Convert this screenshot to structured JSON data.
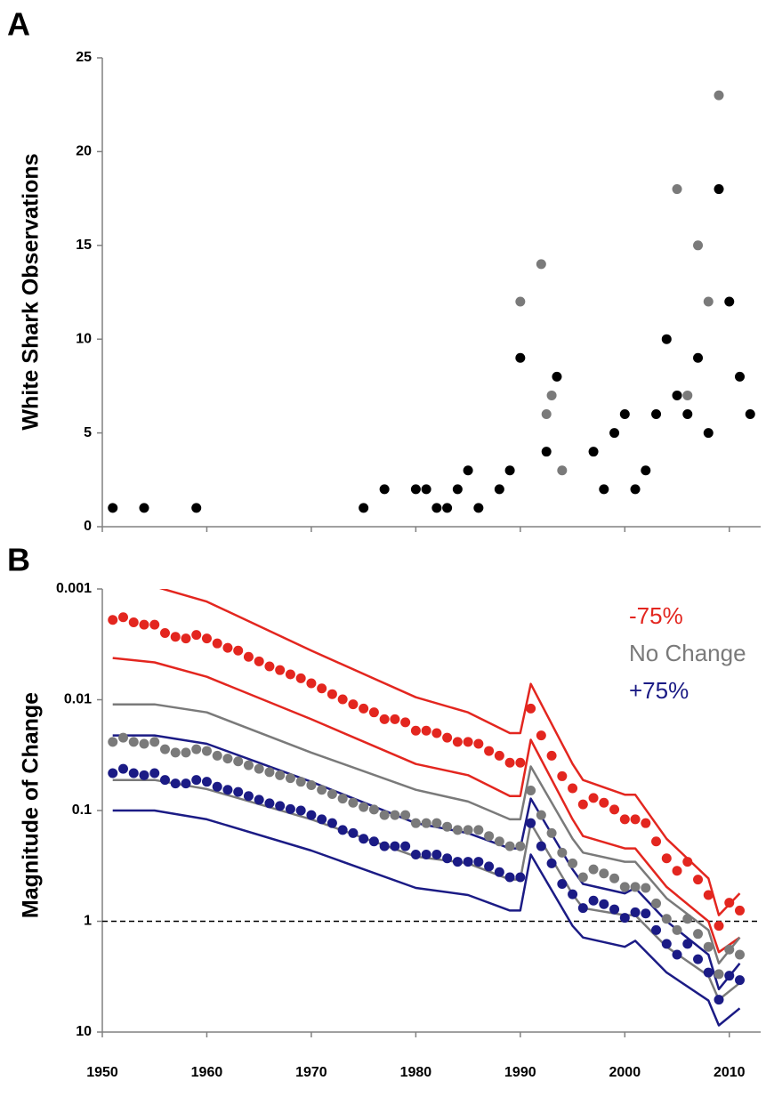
{
  "chart_data": [
    {
      "type": "scatter",
      "panel": "A",
      "ylabel": "White Shark Observations",
      "xlim": [
        1950,
        2013
      ],
      "xticks": [
        1950,
        1960,
        1970,
        1980,
        1990,
        2000,
        2010
      ],
      "ylim": [
        0,
        25
      ],
      "yticks": [
        0,
        5,
        10,
        15,
        20,
        25
      ],
      "series": [
        {
          "color": "#000000",
          "x": [
            1951,
            1954,
            1959,
            1975,
            1977,
            1980,
            1981,
            1982,
            1983,
            1984,
            1985,
            1986,
            1988,
            1989,
            1990,
            1992.5,
            1993.5,
            1997,
            1998,
            1999,
            2000,
            2001,
            2002,
            2003,
            2004,
            2005,
            2006,
            2007,
            2008,
            2009,
            2010,
            2011,
            2012
          ],
          "values": [
            1,
            1,
            1,
            1,
            2,
            2,
            2,
            1,
            1,
            2,
            3,
            1,
            2,
            3,
            9,
            4,
            8,
            4,
            2,
            5,
            6,
            2,
            3,
            6,
            10,
            7,
            6,
            9,
            5,
            18,
            12,
            8,
            6
          ]
        },
        {
          "color": "#7a7a7a",
          "x": [
            1990,
            1992,
            1993,
            1992.5,
            1994,
            2005,
            2006,
            2007,
            2008,
            2009
          ],
          "values": [
            12,
            14,
            7,
            6,
            3,
            18,
            7,
            15,
            12,
            23
          ]
        }
      ]
    },
    {
      "type": "line",
      "panel": "B",
      "ylabel": "Magnitude of Change",
      "xlim": [
        1950,
        2013
      ],
      "xticks": [
        1950,
        1960,
        1970,
        1980,
        1990,
        2000,
        2010
      ],
      "ylim": [
        0.001,
        10
      ],
      "yticks": [
        0.001,
        0.01,
        0.1,
        1,
        10
      ],
      "log_scale": true,
      "y_inverted": true,
      "reference_line": 1,
      "legend": "top-right",
      "x": [
        1951,
        1952,
        1953,
        1954,
        1955,
        1956,
        1957,
        1958,
        1959,
        1960,
        1961,
        1962,
        1963,
        1964,
        1965,
        1966,
        1967,
        1968,
        1969,
        1970,
        1971,
        1972,
        1973,
        1974,
        1975,
        1976,
        1977,
        1978,
        1979,
        1980,
        1981,
        1982,
        1983,
        1984,
        1985,
        1986,
        1987,
        1988,
        1989,
        1990,
        1991,
        1992,
        1993,
        1994,
        1995,
        1996,
        1997,
        1998,
        1999,
        2000,
        2001,
        2002,
        2003,
        2004,
        2005,
        2006,
        2007,
        2008,
        2009,
        2010,
        2011
      ],
      "series": [
        {
          "style": "line",
          "color": "#e3261f",
          "x": [
            1951,
            1955,
            1960,
            1970,
            1980,
            1985,
            1989,
            1990,
            1991,
            1995,
            1996,
            2000,
            2001,
            2004,
            2008,
            2009,
            2011
          ],
          "values": [
            0.00086,
            0.00095,
            0.0013,
            0.0036,
            0.0095,
            0.013,
            0.02,
            0.02,
            0.0072,
            0.038,
            0.053,
            0.072,
            0.072,
            0.18,
            0.41,
            0.88,
            0.56
          ]
        },
        {
          "style": "line",
          "color": "#e3261f",
          "x": [
            1951,
            1955,
            1960,
            1970,
            1980,
            1985,
            1989,
            1990,
            1991,
            1995,
            1996,
            2000,
            2001,
            2004,
            2008,
            2009,
            2011
          ],
          "values": [
            0.0042,
            0.0046,
            0.0062,
            0.015,
            0.038,
            0.048,
            0.074,
            0.074,
            0.023,
            0.12,
            0.17,
            0.22,
            0.22,
            0.49,
            1.0,
            1.9,
            1.4
          ]
        },
        {
          "style": "line",
          "color": "#7a7a7a",
          "x": [
            1951,
            1955,
            1960,
            1970,
            1980,
            1985,
            1989,
            1990,
            1991,
            1995,
            1996,
            2000,
            2001,
            2004,
            2008,
            2009,
            2011
          ],
          "values": [
            0.011,
            0.011,
            0.013,
            0.03,
            0.065,
            0.083,
            0.12,
            0.12,
            0.04,
            0.18,
            0.24,
            0.29,
            0.29,
            0.62,
            1.2,
            2.4,
            1.4
          ]
        },
        {
          "style": "line",
          "color": "#7a7a7a",
          "x": [
            1951,
            1955,
            1960,
            1970,
            1980,
            1985,
            1989,
            1990,
            1991,
            1995,
            1996,
            2000,
            2001,
            2004,
            2008,
            2009,
            2011
          ],
          "values": [
            0.053,
            0.053,
            0.064,
            0.12,
            0.26,
            0.3,
            0.42,
            0.42,
            0.13,
            0.57,
            0.76,
            0.88,
            0.88,
            1.7,
            3.1,
            5.1,
            3.6
          ]
        },
        {
          "style": "line",
          "color": "#1b1b85",
          "x": [
            1951,
            1955,
            1960,
            1970,
            1980,
            1985,
            1989,
            1990,
            1991,
            1995,
            1996,
            2000,
            2001,
            2004,
            2008,
            2009,
            2011
          ],
          "values": [
            0.021,
            0.021,
            0.025,
            0.055,
            0.13,
            0.16,
            0.22,
            0.22,
            0.078,
            0.34,
            0.46,
            0.56,
            0.5,
            1.0,
            2.0,
            4.1,
            2.4
          ]
        },
        {
          "style": "line",
          "color": "#1b1b85",
          "x": [
            1951,
            1955,
            1960,
            1970,
            1980,
            1985,
            1989,
            1990,
            1991,
            1995,
            1996,
            2000,
            2001,
            2004,
            2008,
            2009,
            2011
          ],
          "values": [
            0.1,
            0.1,
            0.12,
            0.23,
            0.5,
            0.58,
            0.8,
            0.8,
            0.25,
            1.1,
            1.4,
            1.7,
            1.5,
            2.9,
            5.2,
            8.7,
            6.1
          ]
        },
        {
          "style": "dots",
          "name": "-75%",
          "color": "#e3261f",
          "values": [
            0.0019,
            0.0018,
            0.002,
            0.0021,
            0.0021,
            0.0025,
            0.0027,
            0.0028,
            0.0026,
            0.0028,
            0.0031,
            0.0034,
            0.0036,
            0.0041,
            0.0045,
            0.005,
            0.0054,
            0.0059,
            0.0064,
            0.0071,
            0.0079,
            0.0089,
            0.0099,
            0.011,
            0.012,
            0.013,
            0.015,
            0.015,
            0.016,
            0.019,
            0.019,
            0.02,
            0.022,
            0.024,
            0.024,
            0.025,
            0.029,
            0.032,
            0.037,
            0.037,
            0.012,
            0.021,
            0.032,
            0.049,
            0.063,
            0.088,
            0.077,
            0.085,
            0.098,
            0.12,
            0.12,
            0.13,
            0.19,
            0.27,
            0.35,
            0.29,
            0.42,
            0.58,
            1.1,
            0.68,
            0.8
          ]
        },
        {
          "style": "dots",
          "name": "No Change",
          "color": "#7a7a7a",
          "values": [
            0.024,
            0.022,
            0.024,
            0.025,
            0.024,
            0.028,
            0.03,
            0.03,
            0.028,
            0.029,
            0.032,
            0.034,
            0.036,
            0.039,
            0.042,
            0.045,
            0.048,
            0.051,
            0.055,
            0.059,
            0.065,
            0.071,
            0.078,
            0.085,
            0.093,
            0.098,
            0.11,
            0.11,
            0.11,
            0.13,
            0.13,
            0.13,
            0.14,
            0.15,
            0.15,
            0.15,
            0.17,
            0.19,
            0.21,
            0.21,
            0.066,
            0.11,
            0.16,
            0.24,
            0.3,
            0.4,
            0.34,
            0.37,
            0.41,
            0.49,
            0.49,
            0.5,
            0.69,
            0.95,
            1.2,
            0.95,
            1.3,
            1.7,
            3.0,
            1.8,
            2.0
          ]
        },
        {
          "style": "dots",
          "name": "+75%",
          "color": "#1b1b85",
          "values": [
            0.046,
            0.042,
            0.046,
            0.048,
            0.046,
            0.053,
            0.057,
            0.057,
            0.053,
            0.055,
            0.061,
            0.065,
            0.068,
            0.074,
            0.08,
            0.086,
            0.091,
            0.097,
            0.1,
            0.11,
            0.12,
            0.13,
            0.15,
            0.16,
            0.18,
            0.19,
            0.21,
            0.21,
            0.21,
            0.25,
            0.25,
            0.25,
            0.27,
            0.29,
            0.29,
            0.29,
            0.32,
            0.36,
            0.4,
            0.4,
            0.13,
            0.21,
            0.3,
            0.46,
            0.57,
            0.76,
            0.65,
            0.7,
            0.78,
            0.93,
            0.83,
            0.85,
            1.2,
            1.6,
            2.0,
            1.6,
            2.2,
            2.9,
            5.1,
            3.1,
            3.4
          ]
        }
      ]
    }
  ]
}
